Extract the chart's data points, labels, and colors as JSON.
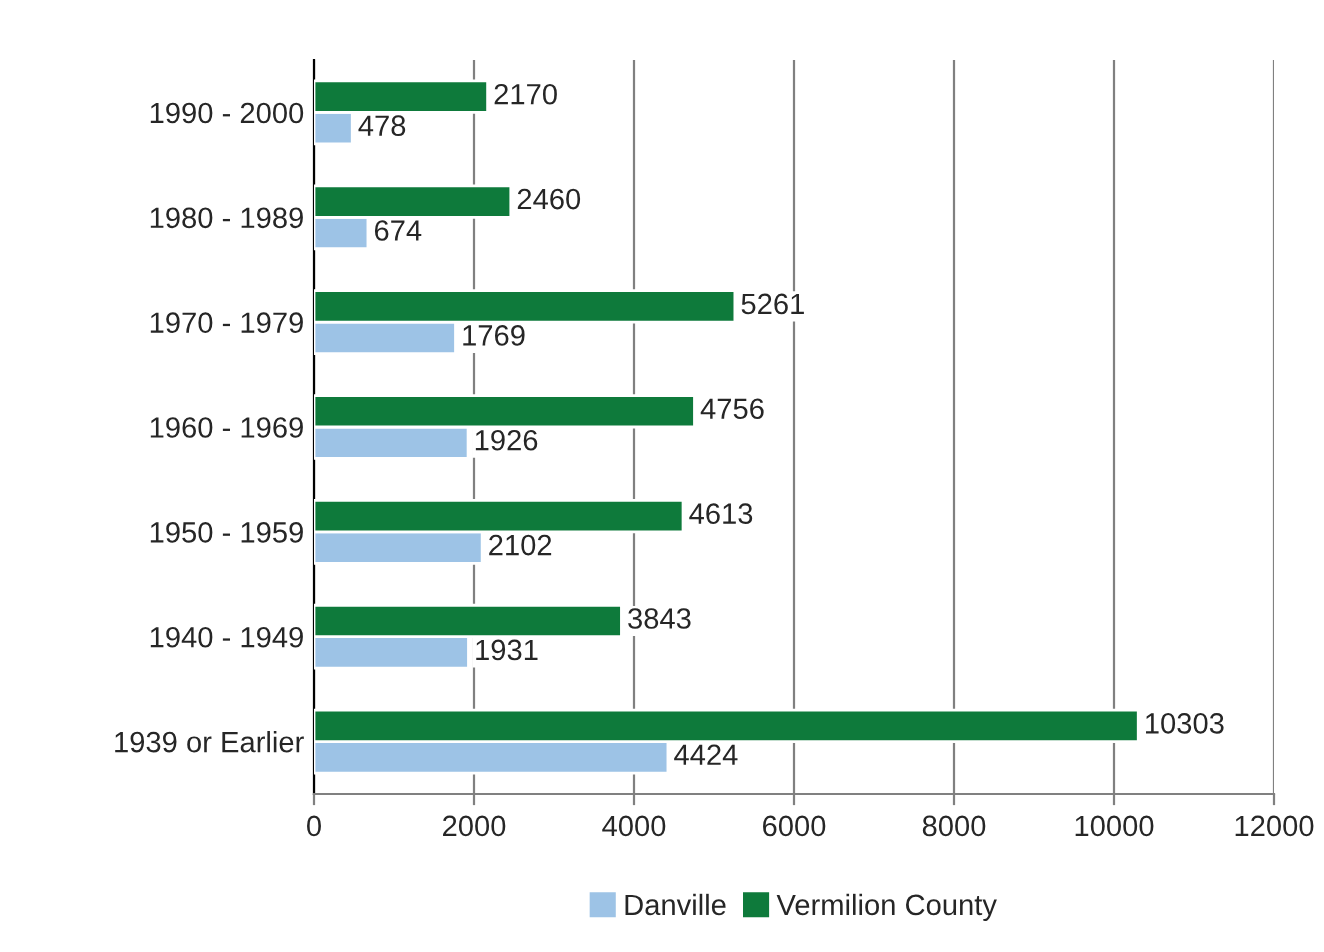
{
  "chart_data": {
    "type": "bar",
    "orientation": "horizontal",
    "categories": [
      "1990 - 2000",
      "1980 - 1989",
      "1970 - 1979",
      "1960 - 1969",
      "1950 - 1959",
      "1940 - 1949",
      "1939 or Earlier"
    ],
    "series": [
      {
        "name": "Danville",
        "color": "#9dc3e6",
        "values": [
          478,
          674,
          1769,
          1926,
          2102,
          1931,
          4424
        ]
      },
      {
        "name": "Vermilion County",
        "color": "#0e7a3b",
        "values": [
          2170,
          2460,
          5261,
          4756,
          4613,
          3843,
          10303
        ]
      }
    ],
    "xlim": [
      0,
      12000
    ],
    "xticks": [
      0,
      2000,
      4000,
      6000,
      8000,
      10000,
      12000
    ],
    "grid": "x",
    "legend": "bottom",
    "data_labels": true
  }
}
